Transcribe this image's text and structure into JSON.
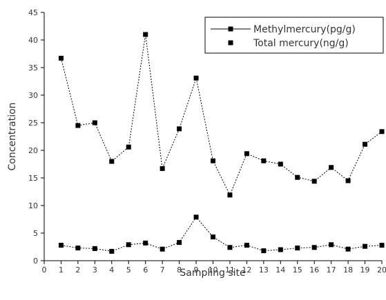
{
  "chart_data": {
    "type": "line",
    "title": "",
    "xlabel": "Sampling site",
    "ylabel": "Concentration",
    "xlim": [
      0,
      20
    ],
    "ylim": [
      0,
      45
    ],
    "x_ticks": [
      0,
      1,
      2,
      3,
      4,
      5,
      6,
      7,
      8,
      9,
      10,
      11,
      12,
      13,
      14,
      15,
      16,
      17,
      18,
      19,
      20
    ],
    "y_ticks": [
      0,
      5,
      10,
      15,
      20,
      25,
      30,
      35,
      40,
      45
    ],
    "grid": false,
    "legend_position": "top-right",
    "x": [
      1,
      2,
      3,
      4,
      5,
      6,
      7,
      8,
      9,
      10,
      11,
      12,
      13,
      14,
      15,
      16,
      17,
      18,
      19,
      20
    ],
    "series": [
      {
        "name": "Methylmercury(pg/g)",
        "marker": "square",
        "line": "dashed",
        "color": "#000000",
        "values": [
          36.7,
          24.5,
          25.0,
          18.0,
          20.6,
          41.0,
          16.7,
          23.9,
          33.1,
          18.1,
          11.9,
          19.4,
          18.1,
          17.5,
          15.1,
          14.4,
          16.9,
          14.5,
          21.1,
          23.4
        ]
      },
      {
        "name": "Total mercury(ng/g)",
        "marker": "square",
        "line": "dashed",
        "color": "#000000",
        "values": [
          2.8,
          2.3,
          2.2,
          1.7,
          2.9,
          3.2,
          2.1,
          3.3,
          7.9,
          4.3,
          2.4,
          2.8,
          1.8,
          2.0,
          2.3,
          2.4,
          2.9,
          2.1,
          2.6,
          2.8
        ]
      }
    ]
  },
  "legend_items": [
    "Methylmercury(pg/g)",
    "Total mercury(ng/g)"
  ]
}
